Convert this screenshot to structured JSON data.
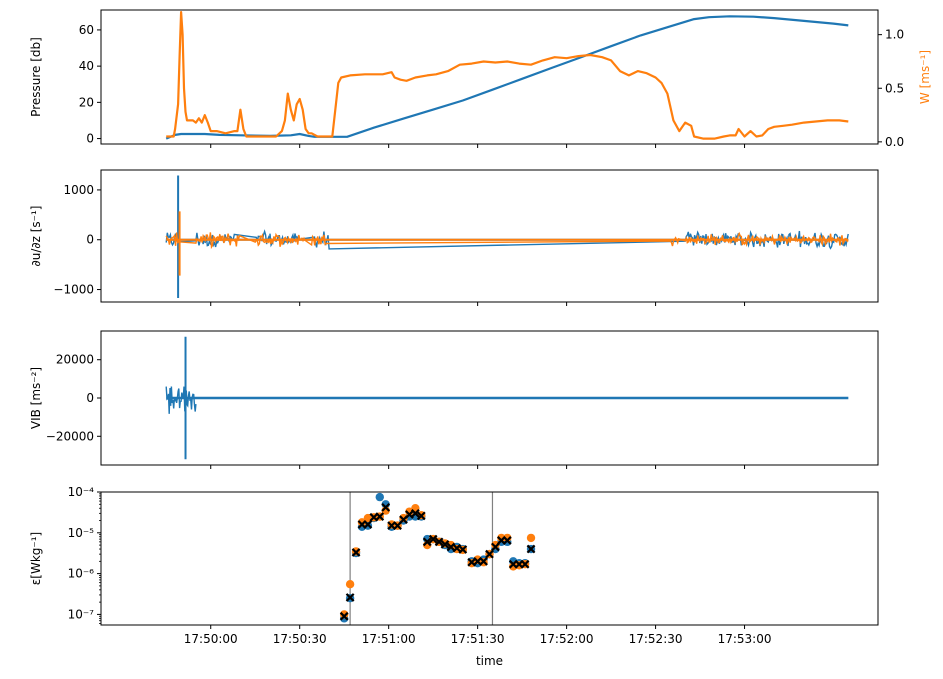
{
  "chart_data": [
    {
      "type": "line",
      "panel": "pressure",
      "ylabel": "Pressure [db]",
      "ylabel2": "W [ms⁻¹]",
      "ylim": [
        -3,
        71
      ],
      "y2lim": [
        -0.02,
        1.23
      ],
      "yticks": [
        "0",
        "20",
        "40",
        "60"
      ],
      "y2ticks": [
        "0.0",
        "0.5",
        "1.0"
      ],
      "series": [
        {
          "axis": "left",
          "color": "#1f77b4",
          "points": [
            [
              -15,
              0
            ],
            [
              -12,
              2
            ],
            [
              -10,
              2.5
            ],
            [
              -6,
              2.5
            ],
            [
              -2,
              2.5
            ],
            [
              3,
              2
            ],
            [
              10,
              1.8
            ],
            [
              20,
              1.5
            ],
            [
              27,
              1.8
            ],
            [
              30,
              2.5
            ],
            [
              33,
              1.5
            ],
            [
              35,
              1
            ],
            [
              40,
              1
            ],
            [
              46,
              1
            ],
            [
              55,
              6
            ],
            [
              65,
              11
            ],
            [
              75,
              16
            ],
            [
              85,
              21
            ],
            [
              95,
              27
            ],
            [
              105,
              33
            ],
            [
              115,
              39
            ],
            [
              125,
              45
            ],
            [
              135,
              51
            ],
            [
              145,
              57
            ],
            [
              155,
              62
            ],
            [
              163,
              66
            ],
            [
              168,
              67
            ],
            [
              175,
              67.5
            ],
            [
              183,
              67.3
            ],
            [
              190,
              66.5
            ],
            [
              200,
              65
            ],
            [
              210,
              63.5
            ],
            [
              215,
              62.5
            ]
          ]
        },
        {
          "axis": "right",
          "color": "#ff7f0e",
          "points": [
            [
              -15,
              0.05
            ],
            [
              -12.5,
              0.05
            ],
            [
              -12,
              0.12
            ],
            [
              -11,
              0.35
            ],
            [
              -10.5,
              0.8
            ],
            [
              -10,
              1.21
            ],
            [
              -9.5,
              1.0
            ],
            [
              -9,
              0.5
            ],
            [
              -8.5,
              0.28
            ],
            [
              -8,
              0.2
            ],
            [
              -6,
              0.2
            ],
            [
              -5,
              0.18
            ],
            [
              -4,
              0.22
            ],
            [
              -3,
              0.18
            ],
            [
              -2,
              0.25
            ],
            [
              -1,
              0.18
            ],
            [
              0,
              0.1
            ],
            [
              2,
              0.1
            ],
            [
              5,
              0.08
            ],
            [
              8,
              0.1
            ],
            [
              9,
              0.1
            ],
            [
              10,
              0.3
            ],
            [
              11,
              0.12
            ],
            [
              12,
              0.05
            ],
            [
              15,
              0.05
            ],
            [
              18,
              0.05
            ],
            [
              22,
              0.05
            ],
            [
              24,
              0.1
            ],
            [
              25,
              0.2
            ],
            [
              26,
              0.45
            ],
            [
              27,
              0.3
            ],
            [
              28,
              0.2
            ],
            [
              29,
              0.35
            ],
            [
              30,
              0.4
            ],
            [
              31,
              0.3
            ],
            [
              32,
              0.12
            ],
            [
              33,
              0.08
            ],
            [
              34,
              0.08
            ],
            [
              36,
              0.05
            ],
            [
              38,
              0.05
            ],
            [
              41,
              0.05
            ],
            [
              42,
              0.3
            ],
            [
              43,
              0.55
            ],
            [
              44,
              0.6
            ],
            [
              47,
              0.62
            ],
            [
              52,
              0.63
            ],
            [
              58,
              0.63
            ],
            [
              61,
              0.65
            ],
            [
              62,
              0.6
            ],
            [
              64,
              0.58
            ],
            [
              66,
              0.57
            ],
            [
              69,
              0.6
            ],
            [
              73,
              0.62
            ],
            [
              76,
              0.63
            ],
            [
              80,
              0.66
            ],
            [
              84,
              0.72
            ],
            [
              88,
              0.73
            ],
            [
              92,
              0.75
            ],
            [
              96,
              0.74
            ],
            [
              100,
              0.75
            ],
            [
              104,
              0.73
            ],
            [
              108,
              0.72
            ],
            [
              112,
              0.76
            ],
            [
              116,
              0.79
            ],
            [
              120,
              0.78
            ],
            [
              124,
              0.8
            ],
            [
              128,
              0.81
            ],
            [
              132,
              0.79
            ],
            [
              135,
              0.76
            ],
            [
              138,
              0.66
            ],
            [
              141,
              0.62
            ],
            [
              144,
              0.66
            ],
            [
              147,
              0.64
            ],
            [
              150,
              0.6
            ],
            [
              152,
              0.55
            ],
            [
              154,
              0.45
            ],
            [
              156,
              0.2
            ],
            [
              158,
              0.1
            ],
            [
              160,
              0.18
            ],
            [
              162,
              0.15
            ],
            [
              163,
              0.05
            ],
            [
              166,
              0.03
            ],
            [
              170,
              0.03
            ],
            [
              173,
              0.05
            ],
            [
              175,
              0.06
            ],
            [
              177,
              0.06
            ],
            [
              178,
              0.12
            ],
            [
              180,
              0.05
            ],
            [
              182,
              0.1
            ],
            [
              184,
              0.05
            ],
            [
              186,
              0.06
            ],
            [
              188,
              0.12
            ],
            [
              190,
              0.14
            ],
            [
              193,
              0.15
            ],
            [
              196,
              0.16
            ],
            [
              200,
              0.18
            ],
            [
              204,
              0.19
            ],
            [
              208,
              0.2
            ],
            [
              212,
              0.2
            ],
            [
              215,
              0.19
            ]
          ]
        }
      ]
    },
    {
      "type": "line",
      "panel": "shear",
      "ylabel": "∂u/∂z [s⁻¹]",
      "ylim": [
        -1250,
        1400
      ],
      "yticks": [
        "−1000",
        "0",
        "1000"
      ],
      "series": [
        {
          "color": "#1f77b4",
          "segments": [
            [
              -15,
              -11
            ],
            [
              -5,
              8
            ],
            [
              15,
              20
            ],
            [
              20,
              30
            ],
            [
              35,
              40
            ],
            [
              160,
              215
            ]
          ],
          "spike": {
            "t": -11,
            "min": -1170,
            "max": 1290
          }
        },
        {
          "color": "#ff7f0e",
          "segments": [
            [
              -15,
              -10
            ],
            [
              -5,
              10
            ],
            [
              15,
              22
            ],
            [
              22,
              32
            ],
            [
              34,
              39
            ],
            [
              155,
              158
            ],
            [
              160,
              215
            ]
          ],
          "spike": {
            "t": -10.5,
            "min": -720,
            "max": 570
          }
        }
      ]
    },
    {
      "type": "line",
      "panel": "vibration",
      "ylabel": "VIB [ms⁻²]",
      "ylim": [
        -35000,
        35000
      ],
      "yticks": [
        "−20000",
        "0",
        "20000"
      ],
      "series": [
        {
          "color": "#1f77b4",
          "t_start": -15,
          "t_end": 215,
          "burst": [
            -15,
            -5
          ],
          "spike": {
            "t": -8.5,
            "min": -32000,
            "max": 32000
          }
        }
      ]
    },
    {
      "type": "scatter",
      "panel": "dissipation",
      "ylabel": "ε[Wkg⁻¹]",
      "xlabel": "time",
      "yscale": "log",
      "ylim": [
        5.5e-08,
        0.0001
      ],
      "yticks": [
        "10⁻⁷",
        "10⁻⁶",
        "10⁻⁵",
        "10⁻⁴"
      ],
      "xticks": [
        "17:50:00",
        "17:50:30",
        "17:51:00",
        "17:51:30",
        "17:52:00",
        "17:52:30",
        "17:53:00"
      ],
      "xtick_seconds": [
        0,
        30,
        60,
        90,
        120,
        150,
        180
      ],
      "vlines": [
        47,
        95
      ],
      "series": [
        {
          "marker": "circle",
          "color": "#1f77b4",
          "points": [
            [
              45,
              8e-08
            ],
            [
              47,
              2.5e-07
            ],
            [
              49,
              3.2e-06
            ],
            [
              51,
              1.4e-05
            ],
            [
              53,
              1.5e-05
            ],
            [
              55,
              2.3e-05
            ],
            [
              57,
              7.5e-05
            ],
            [
              59,
              5e-05
            ],
            [
              61,
              1.4e-05
            ],
            [
              63,
              1.5e-05
            ],
            [
              65,
              2e-05
            ],
            [
              67,
              2.5e-05
            ],
            [
              69,
              2.5e-05
            ],
            [
              71,
              2.5e-05
            ],
            [
              73,
              7e-06
            ],
            [
              75,
              7e-06
            ],
            [
              77,
              6e-06
            ],
            [
              79,
              5e-06
            ],
            [
              81,
              4e-06
            ],
            [
              83,
              4.5e-06
            ],
            [
              85,
              4e-06
            ],
            [
              88,
              2e-06
            ],
            [
              90,
              1.8e-06
            ],
            [
              92,
              2.2e-06
            ],
            [
              94,
              3e-06
            ],
            [
              96,
              4e-06
            ],
            [
              98,
              6e-06
            ],
            [
              100,
              6e-06
            ],
            [
              102,
              2e-06
            ],
            [
              104,
              1.8e-06
            ],
            [
              106,
              1.8e-06
            ],
            [
              108,
              4e-06
            ]
          ]
        },
        {
          "marker": "circle",
          "color": "#ff7f0e",
          "points": [
            [
              45,
              1e-07
            ],
            [
              47,
              5.5e-07
            ],
            [
              49,
              3.5e-06
            ],
            [
              51,
              1.8e-05
            ],
            [
              53,
              2.3e-05
            ],
            [
              55,
              2.4e-05
            ],
            [
              57,
              2.5e-05
            ],
            [
              59,
              3.5e-05
            ],
            [
              61,
              1.6e-05
            ],
            [
              63,
              1.5e-05
            ],
            [
              65,
              2.3e-05
            ],
            [
              67,
              3.3e-05
            ],
            [
              69,
              4e-05
            ],
            [
              71,
              2.7e-05
            ],
            [
              73,
              5e-06
            ],
            [
              75,
              7e-06
            ],
            [
              77,
              6e-06
            ],
            [
              79,
              5.5e-06
            ],
            [
              81,
              5e-06
            ],
            [
              83,
              4e-06
            ],
            [
              85,
              3.8e-06
            ],
            [
              88,
              1.8e-06
            ],
            [
              90,
              2.2e-06
            ],
            [
              92,
              1.9e-06
            ],
            [
              94,
              3e-06
            ],
            [
              96,
              5e-06
            ],
            [
              98,
              7.5e-06
            ],
            [
              100,
              7.5e-06
            ],
            [
              102,
              1.5e-06
            ],
            [
              104,
              1.6e-06
            ],
            [
              106,
              1.7e-06
            ],
            [
              108,
              7.5e-06
            ]
          ]
        },
        {
          "marker": "x",
          "color": "#000000",
          "points": [
            [
              45,
              9e-08
            ],
            [
              47,
              2.6e-07
            ],
            [
              49,
              3.3e-06
            ],
            [
              51,
              1.6e-05
            ],
            [
              53,
              1.6e-05
            ],
            [
              55,
              2.4e-05
            ],
            [
              57,
              2.5e-05
            ],
            [
              59,
              4.2e-05
            ],
            [
              61,
              1.5e-05
            ],
            [
              63,
              1.5e-05
            ],
            [
              65,
              2.1e-05
            ],
            [
              67,
              2.8e-05
            ],
            [
              69,
              3e-05
            ],
            [
              71,
              2.6e-05
            ],
            [
              73,
              6e-06
            ],
            [
              75,
              7e-06
            ],
            [
              77,
              6e-06
            ],
            [
              79,
              5.2e-06
            ],
            [
              81,
              4.5e-06
            ],
            [
              83,
              4.2e-06
            ],
            [
              85,
              3.9e-06
            ],
            [
              88,
              1.9e-06
            ],
            [
              90,
              2e-06
            ],
            [
              92,
              2e-06
            ],
            [
              94,
              3e-06
            ],
            [
              96,
              4.5e-06
            ],
            [
              98,
              6.5e-06
            ],
            [
              100,
              6.5e-06
            ],
            [
              102,
              1.7e-06
            ],
            [
              104,
              1.7e-06
            ],
            [
              106,
              1.7e-06
            ],
            [
              108,
              4e-06
            ]
          ]
        }
      ]
    }
  ]
}
